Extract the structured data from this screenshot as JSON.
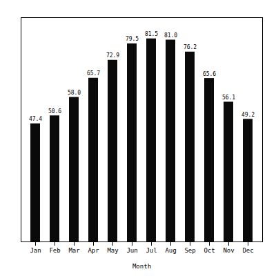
{
  "chart_data": {
    "type": "bar",
    "categories": [
      "Jan",
      "Feb",
      "Mar",
      "Apr",
      "May",
      "Jun",
      "Jul",
      "Aug",
      "Sep",
      "Oct",
      "Nov",
      "Dec"
    ],
    "values": [
      47.4,
      50.6,
      58.0,
      65.7,
      72.9,
      79.5,
      81.5,
      81.0,
      76.2,
      65.6,
      56.1,
      49.2
    ],
    "value_labels": [
      "47.4",
      "50.6",
      "58.0",
      "65.7",
      "72.9",
      "79.5",
      "81.5",
      "81.0",
      "76.2",
      "65.6",
      "56.1",
      "49.2"
    ],
    "data_labels": true,
    "color": "#0a0a0a",
    "xlabel": "Month",
    "ylim": [
      0,
      90
    ],
    "tick_labels": "x",
    "grid": false
  }
}
